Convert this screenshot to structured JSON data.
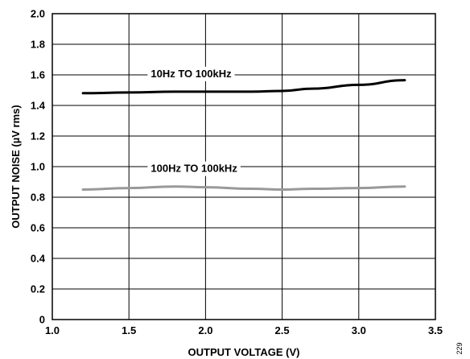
{
  "chart_data": {
    "type": "line",
    "xlabel": "OUTPUT VOLTAGE (V)",
    "ylabel": "OUTPUT NOISE (µV rms)",
    "xlim": [
      1.0,
      3.5
    ],
    "ylim": [
      0,
      2.0
    ],
    "x_ticks": [
      "1.0",
      "1.5",
      "2.0",
      "2.5",
      "3.0",
      "3.5"
    ],
    "y_ticks": [
      "0",
      "0.2",
      "0.4",
      "0.6",
      "0.8",
      "1.0",
      "1.2",
      "1.4",
      "1.6",
      "1.8",
      "2.0"
    ],
    "grid": true,
    "series": [
      {
        "name": "10Hz TO 100kHz",
        "color": "#000000",
        "x": [
          1.2,
          1.5,
          1.8,
          2.0,
          2.3,
          2.5,
          2.7,
          3.0,
          3.3
        ],
        "y": [
          1.48,
          1.485,
          1.49,
          1.49,
          1.49,
          1.495,
          1.51,
          1.535,
          1.565
        ]
      },
      {
        "name": "100Hz TO 100kHz",
        "color": "#999999",
        "x": [
          1.2,
          1.5,
          1.8,
          2.0,
          2.3,
          2.5,
          2.7,
          3.0,
          3.3
        ],
        "y": [
          0.85,
          0.86,
          0.87,
          0.865,
          0.855,
          0.85,
          0.855,
          0.86,
          0.87
        ]
      }
    ],
    "figure_id": "229"
  }
}
